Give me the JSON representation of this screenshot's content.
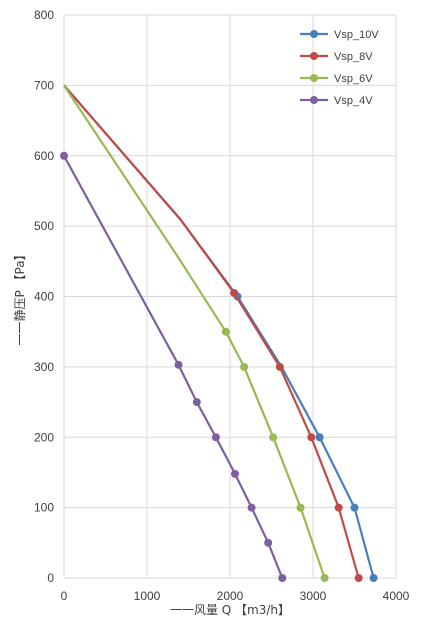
{
  "chart_data": {
    "type": "line",
    "xlabel": "一一风量 Q 【m3/h】",
    "ylabel": "一一静压P 【Pa】",
    "xlim": [
      0,
      4000
    ],
    "ylim": [
      0,
      800
    ],
    "xticks": [
      "0",
      "1000",
      "2000",
      "3000",
      "4000"
    ],
    "yticks": [
      "0",
      "100",
      "200",
      "300",
      "400",
      "500",
      "600",
      "700",
      "800"
    ],
    "grid": "vertical-and-horizontal",
    "legend_position": "top-right",
    "series": [
      {
        "name": "Vsp_10V",
        "color": "#4a7ebb",
        "points": [
          [
            0,
            700
          ],
          [
            1400,
            510
          ],
          [
            2090,
            400
          ],
          [
            2620,
            300
          ],
          [
            3080,
            200
          ],
          [
            3500,
            100
          ],
          [
            3730,
            0
          ]
        ],
        "markers": [
          [
            2090,
            400
          ],
          [
            3080,
            200
          ],
          [
            3500,
            100
          ],
          [
            3730,
            0
          ]
        ]
      },
      {
        "name": "Vsp_8V",
        "color": "#be4b48",
        "points": [
          [
            0,
            700
          ],
          [
            1400,
            510
          ],
          [
            2050,
            405
          ],
          [
            2600,
            300
          ],
          [
            2980,
            200
          ],
          [
            3310,
            100
          ],
          [
            3550,
            0
          ]
        ],
        "markers": [
          [
            2050,
            405
          ],
          [
            2600,
            300
          ],
          [
            2980,
            200
          ],
          [
            3310,
            100
          ],
          [
            3550,
            0
          ]
        ]
      },
      {
        "name": "Vsp_6V",
        "color": "#98b954",
        "points": [
          [
            0,
            700
          ],
          [
            1380,
            455
          ],
          [
            1950,
            350
          ],
          [
            2170,
            300
          ],
          [
            2520,
            200
          ],
          [
            2850,
            100
          ],
          [
            3140,
            0
          ]
        ],
        "markers": [
          [
            1950,
            350
          ],
          [
            2170,
            300
          ],
          [
            2520,
            200
          ],
          [
            2850,
            100
          ],
          [
            3140,
            0
          ]
        ]
      },
      {
        "name": "Vsp_4V",
        "color": "#7d60a0",
        "points": [
          [
            0,
            600
          ],
          [
            1380,
            303
          ],
          [
            1600,
            250
          ],
          [
            1830,
            200
          ],
          [
            2060,
            148
          ],
          [
            2260,
            100
          ],
          [
            2460,
            50
          ],
          [
            2630,
            0
          ]
        ],
        "markers": [
          [
            0,
            600
          ],
          [
            1380,
            303
          ],
          [
            1600,
            250
          ],
          [
            1830,
            200
          ],
          [
            2060,
            148
          ],
          [
            2260,
            100
          ],
          [
            2460,
            50
          ],
          [
            2630,
            0
          ]
        ]
      }
    ]
  }
}
